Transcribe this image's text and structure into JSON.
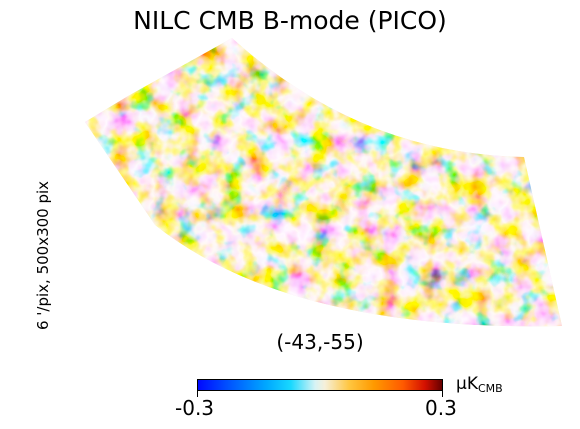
{
  "title": "NILC CMB B-mode (PICO)",
  "side_label": "6 '/pix,   500x300 pix",
  "center_label": "(-43,-55)",
  "colorbar": {
    "min_label": "-0.3",
    "max_label": "0.3",
    "unit_main": "μK",
    "unit_sub": "CMB",
    "colors": [
      "#0008ff",
      "#0050ff",
      "#00a8ff",
      "#18d8ff",
      "#d7f3f5",
      "#f6f0da",
      "#ffc640",
      "#ff9a00",
      "#ff5a00",
      "#d41000",
      "#660000"
    ]
  }
}
